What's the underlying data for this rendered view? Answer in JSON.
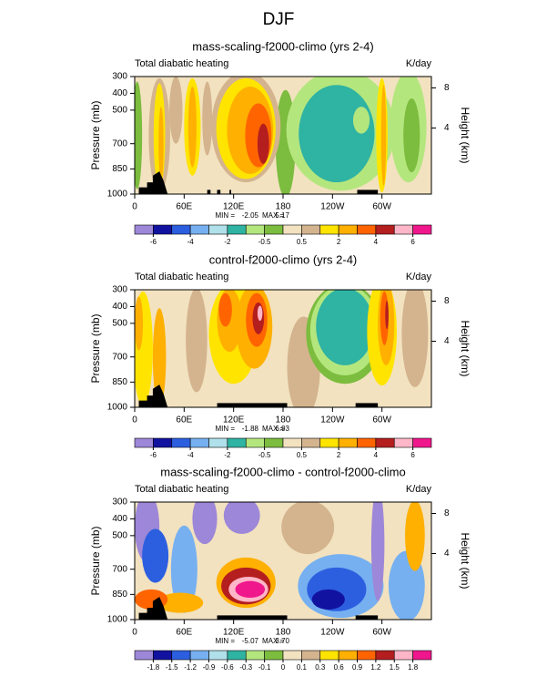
{
  "title": "DJF",
  "chart_data": [
    {
      "type": "contour",
      "title": "mass-scaling-f2000-climo (yrs 2-4)",
      "left_label": "Total diabatic heating",
      "right_label": "K/day",
      "ylabel": "Pressure (mb)",
      "y2label": "Height (km)",
      "xlim": [
        0,
        360
      ],
      "xticks": [
        0,
        {
          "value": 60,
          "label": "60E"
        },
        {
          "value": 120,
          "label": "120E"
        },
        180,
        {
          "value": 240,
          "label": "120W"
        },
        {
          "value": 300,
          "label": "60W"
        }
      ],
      "ylim": [
        1000,
        300
      ],
      "yticks": [
        300,
        400,
        500,
        700,
        850,
        1000
      ],
      "y2ticks": [
        8,
        4
      ],
      "min_text": "MIN =",
      "min": -2.05,
      "max_text": "MAX =",
      "max": 5.17,
      "levels": [
        -6,
        -4,
        -2,
        -0.5,
        0.5,
        2,
        4,
        6
      ],
      "colors": [
        "#9d87d8",
        "#1212a0",
        "#2c5fe0",
        "#76b0f0",
        "#b0e0ea",
        "#2fb3a3",
        "#b4e67e",
        "#7cbc3e",
        "#f2e2c0",
        "#d4b48e",
        "#ffe400",
        "#ffb000",
        "#ff6400",
        "#b41e1e",
        "#ffb6c8",
        "#f0168c"
      ]
    },
    {
      "type": "contour",
      "title": "control-f2000-climo (yrs 2-4)",
      "left_label": "Total diabatic heating",
      "right_label": "K/day",
      "ylabel": "Pressure (mb)",
      "y2label": "Height (km)",
      "xlim": [
        0,
        360
      ],
      "xticks": [
        0,
        {
          "value": 60,
          "label": "60E"
        },
        {
          "value": 120,
          "label": "120E"
        },
        180,
        {
          "value": 240,
          "label": "120W"
        },
        {
          "value": 300,
          "label": "60W"
        }
      ],
      "ylim": [
        1000,
        300
      ],
      "yticks": [
        300,
        400,
        500,
        700,
        850,
        1000
      ],
      "y2ticks": [
        8,
        4
      ],
      "min_text": "MIN =",
      "min": -1.88,
      "max_text": "MAX =",
      "max": 6.93,
      "levels": [
        -6,
        -4,
        -2,
        -0.5,
        0.5,
        2,
        4,
        6
      ],
      "colors": [
        "#9d87d8",
        "#1212a0",
        "#2c5fe0",
        "#76b0f0",
        "#b0e0ea",
        "#2fb3a3",
        "#b4e67e",
        "#7cbc3e",
        "#f2e2c0",
        "#d4b48e",
        "#ffe400",
        "#ffb000",
        "#ff6400",
        "#b41e1e",
        "#ffb6c8",
        "#f0168c"
      ]
    },
    {
      "type": "contour",
      "title": "mass-scaling-f2000-climo - control-f2000-climo",
      "left_label": "Total diabatic heating",
      "right_label": "K/day",
      "ylabel": "Pressure (mb)",
      "y2label": "Height (km)",
      "xlim": [
        0,
        360
      ],
      "xticks": [
        0,
        {
          "value": 60,
          "label": "60E"
        },
        {
          "value": 120,
          "label": "120E"
        },
        180,
        {
          "value": 240,
          "label": "120W"
        },
        {
          "value": 300,
          "label": "60W"
        }
      ],
      "ylim": [
        1000,
        300
      ],
      "yticks": [
        300,
        400,
        500,
        700,
        850,
        1000
      ],
      "y2ticks": [
        8,
        4
      ],
      "min_text": "MIN =",
      "min": -5.07,
      "max_text": "MAX =",
      "max": {
        "value": 3.7,
        "label": "3.70"
      },
      "levels": [
        -1.8,
        -1.5,
        -1.2,
        -0.9,
        -0.6,
        -0.3,
        -0.1,
        0,
        0.1,
        0.3,
        0.6,
        0.9,
        1.2,
        1.5,
        1.8
      ],
      "colors": [
        "#9d87d8",
        "#1212a0",
        "#2c5fe0",
        "#76b0f0",
        "#b0e0ea",
        "#2fb3a3",
        "#b4e67e",
        "#7cbc3e",
        "#f2e2c0",
        "#d4b48e",
        "#ffe400",
        "#ffb000",
        "#ff6400",
        "#b41e1e",
        "#ffb6c8",
        "#f0168c"
      ]
    }
  ]
}
